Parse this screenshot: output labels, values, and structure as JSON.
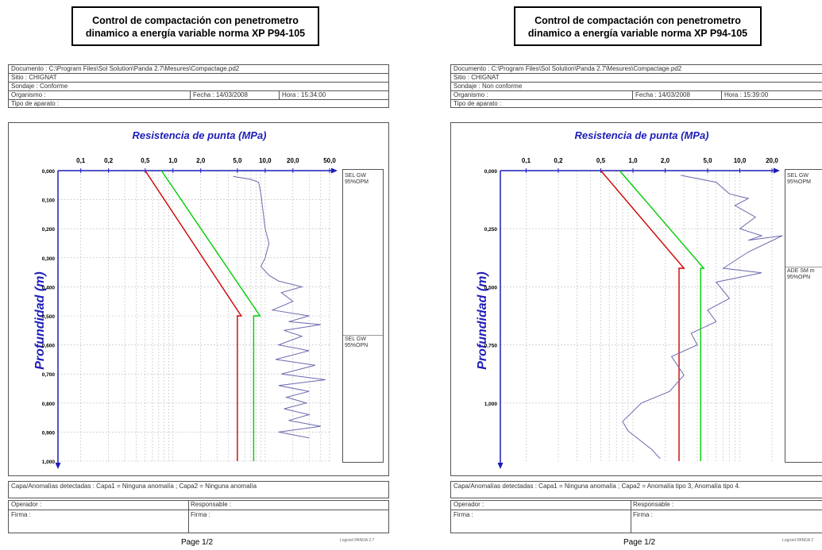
{
  "reports": [
    {
      "title_line1": "Control de compactación con penetrometro",
      "title_line2": "dinamico a energía variable norma XP P94-105",
      "documento": "Documento : C:\\Program Files\\Sol Solution\\Panda 2.7\\Mesures\\Compactage.pd2",
      "sitio": "Sitio : CHIGNAT",
      "sondaje": "Sondaje : Conforme",
      "organismo": "Organismo :",
      "fecha": "Fecha : 14/03/2008",
      "hora": "Hora : 15:34:00",
      "tipo": "Tipo de aparato :",
      "capa": "Capa/Anomalías detectadas : Capa1 = Ninguna anomalía ; Capa2 = Ninguna anomalía",
      "operador": "Operador :",
      "responsable": "Responsable :",
      "firma_a": "Firma :",
      "firma_b": "Firma :",
      "page": "Page 1/2",
      "logiciel": "Logiciel PANDA 2.7",
      "chart_data": {
        "type": "line",
        "title": "Resistencia de punta (MPa)",
        "ylabel": "Profundidad (m)",
        "x_scale": "log",
        "x_ticks": [
          "0,1",
          "0,2",
          "0,5",
          "1,0",
          "2,0",
          "5,0",
          "10,0",
          "20,0",
          "50,0"
        ],
        "y_ticks": [
          "0,000",
          "0,100",
          "0,200",
          "0,300",
          "0,400",
          "0,500",
          "0,600",
          "0,700",
          "0,800",
          "0,900",
          "1,000"
        ],
        "ylim": [
          0,
          1.0
        ],
        "layers": [
          "SEL GW\n95%OPM",
          "SEL GW\n95%OPN"
        ],
        "series": [
          {
            "color": "#cc0000",
            "points": [
              [
                0.5,
                0.0
              ],
              [
                5.5,
                0.5
              ],
              [
                5.0,
                0.5
              ],
              [
                5.0,
                1.0
              ]
            ]
          },
          {
            "color": "#00cc00",
            "points": [
              [
                0.75,
                0.0
              ],
              [
                8.8,
                0.5
              ],
              [
                7.5,
                0.5
              ],
              [
                7.5,
                1.0
              ]
            ]
          },
          {
            "color": "#6a6ab0",
            "points": [
              [
                4.5,
                0.02
              ],
              [
                7,
                0.03
              ],
              [
                8.5,
                0.04
              ],
              [
                9,
                0.08
              ],
              [
                10,
                0.2
              ],
              [
                11,
                0.25
              ],
              [
                10,
                0.3
              ],
              [
                9,
                0.33
              ],
              [
                11,
                0.36
              ],
              [
                14,
                0.38
              ],
              [
                25,
                0.4
              ],
              [
                15,
                0.42
              ],
              [
                20,
                0.45
              ],
              [
                12,
                0.48
              ],
              [
                30,
                0.5
              ],
              [
                18,
                0.52
              ],
              [
                40,
                0.53
              ],
              [
                16,
                0.55
              ],
              [
                25,
                0.57
              ],
              [
                14,
                0.6
              ],
              [
                30,
                0.62
              ],
              [
                13,
                0.65
              ],
              [
                35,
                0.67
              ],
              [
                15,
                0.7
              ],
              [
                45,
                0.72
              ],
              [
                14,
                0.74
              ],
              [
                30,
                0.76
              ],
              [
                17,
                0.78
              ],
              [
                28,
                0.8
              ],
              [
                16,
                0.82
              ],
              [
                30,
                0.84
              ],
              [
                18,
                0.86
              ],
              [
                40,
                0.88
              ],
              [
                14,
                0.9
              ],
              [
                30,
                0.92
              ]
            ]
          }
        ]
      }
    },
    {
      "title_line1": "Control de compactación con penetrometro",
      "title_line2": "dinamico a energía variable norma XP P94-105",
      "documento": "Documento : C:\\Program Files\\Sol Solution\\Panda 2.7\\Mesures\\Compactage.pd2",
      "sitio": "Sitio : CHIGNAT",
      "sondaje": "Sondaje : Non conforme",
      "organismo": "Organismo :",
      "fecha": "Fecha : 14/03/2008",
      "hora": "Hora : 15:39:00",
      "tipo": "Tipo de aparato :",
      "capa": "Capa/Anomalías detectadas : Capa1 = Ninguna anomalía ; Capa2 = Anomalía tipo 3, Anomalía tipo 4.",
      "operador": "Operador :",
      "responsable": "Responsable :",
      "firma_a": "Firma :",
      "firma_b": "Firma :",
      "page": "Page 1/2",
      "logiciel": "Logiciel PANDA 2",
      "chart_data": {
        "type": "line",
        "title": "Resistencia de punta (MPa)",
        "ylabel": "Profundidad (m)",
        "x_scale": "log",
        "x_ticks": [
          "0,1",
          "0,2",
          "0,5",
          "1,0",
          "2,0",
          "5,0",
          "10,0",
          "20,0"
        ],
        "y_ticks": [
          "0,000",
          "0,250",
          "0,500",
          "0,750",
          "1,000"
        ],
        "ylim": [
          0,
          1.25
        ],
        "layers": [
          "SEL GW\n95%OPM",
          "ADE SM m\n95%OPN"
        ],
        "series": [
          {
            "color": "#cc0000",
            "points": [
              [
                0.5,
                0.0
              ],
              [
                3.0,
                0.42
              ],
              [
                2.7,
                0.42
              ],
              [
                2.7,
                1.25
              ]
            ]
          },
          {
            "color": "#00cc00",
            "points": [
              [
                0.75,
                0.0
              ],
              [
                4.6,
                0.42
              ],
              [
                4.3,
                0.42
              ],
              [
                4.3,
                1.25
              ]
            ]
          },
          {
            "color": "#6a6ab0",
            "points": [
              [
                2.8,
                0.02
              ],
              [
                6,
                0.05
              ],
              [
                8,
                0.1
              ],
              [
                12,
                0.12
              ],
              [
                9,
                0.15
              ],
              [
                14,
                0.2
              ],
              [
                10,
                0.25
              ],
              [
                16,
                0.28
              ],
              [
                12,
                0.3
              ],
              [
                25,
                0.28
              ],
              [
                12,
                0.35
              ],
              [
                7,
                0.42
              ],
              [
                16,
                0.44
              ],
              [
                6,
                0.48
              ],
              [
                8,
                0.55
              ],
              [
                5,
                0.6
              ],
              [
                6,
                0.65
              ],
              [
                3.5,
                0.7
              ],
              [
                4,
                0.75
              ],
              [
                2.3,
                0.8
              ],
              [
                3,
                0.88
              ],
              [
                2.2,
                0.95
              ],
              [
                1.2,
                1.0
              ],
              [
                0.8,
                1.08
              ],
              [
                0.9,
                1.12
              ],
              [
                1.5,
                1.2
              ],
              [
                1.8,
                1.24
              ]
            ]
          }
        ]
      }
    }
  ]
}
